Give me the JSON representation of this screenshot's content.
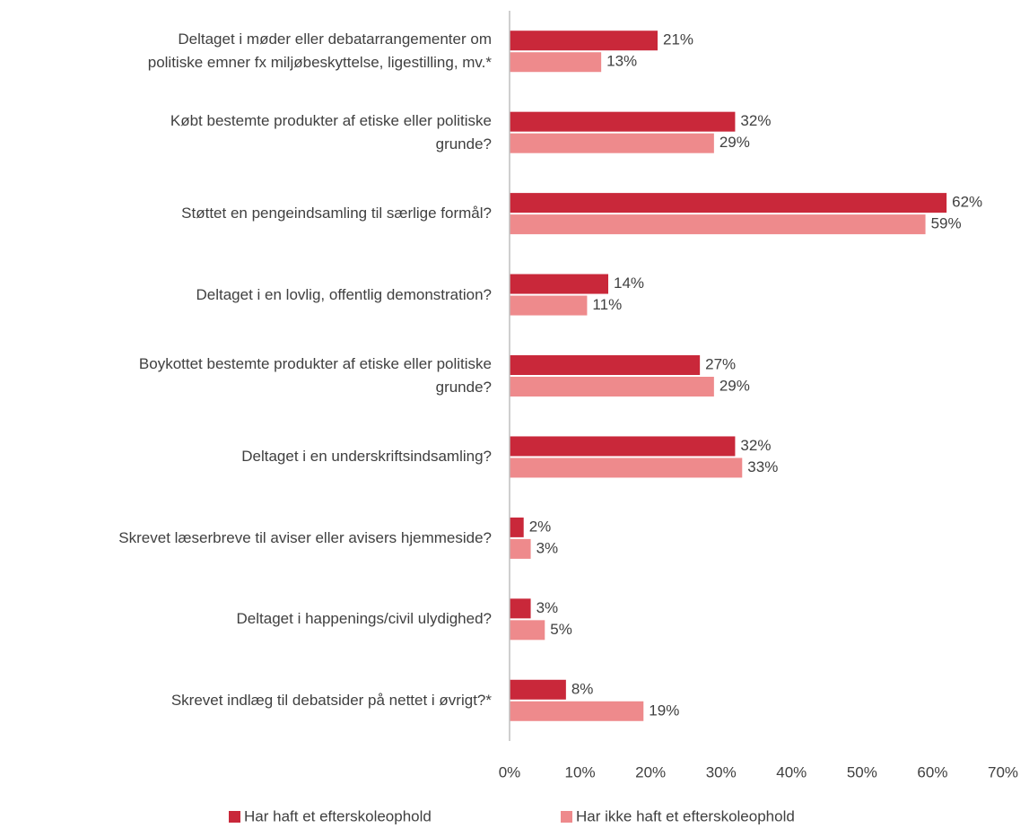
{
  "chart_data": {
    "type": "hbar",
    "categories": [
      "Deltaget i møder eller debatarrangementer om\npolitiske emner fx miljøbeskyttelse, ligestilling, mv.*",
      "Købt bestemte produkter af etiske eller politiske\ngrunde?",
      "Støttet en pengeindsamling til særlige formål?",
      "Deltaget i en lovlig, offentlig demonstration?",
      "Boykottet bestemte produkter af etiske eller politiske\ngrunde?",
      "Deltaget i en underskriftsindsamling?",
      "Skrevet læserbreve til aviser eller avisers hjemmeside?",
      "Deltaget i happenings/civil ulydighed?",
      "Skrevet indlæg til debatsider på nettet i øvrigt?*"
    ],
    "series": [
      {
        "name": "Har haft et efterskoleophold",
        "color": "#c9283a",
        "values": [
          21,
          32,
          62,
          14,
          27,
          32,
          2,
          3,
          8
        ],
        "value_labels": [
          "21%",
          "32%",
          "62%",
          "14%",
          "27%",
          "32%",
          "2%",
          "3%",
          "8%"
        ]
      },
      {
        "name": "Har ikke haft et efterskoleophold",
        "color": "#ee8a8c",
        "values": [
          13,
          29,
          59,
          11,
          29,
          33,
          3,
          5,
          19
        ],
        "value_labels": [
          "13%",
          "29%",
          "59%",
          "11%",
          "29%",
          "33%",
          "3%",
          "5%",
          "19%"
        ]
      }
    ],
    "xlim": [
      0,
      70
    ],
    "xticks": [
      {
        "value": 0,
        "label": "0%"
      },
      {
        "value": 10,
        "label": "10%"
      },
      {
        "value": 20,
        "label": "20%"
      },
      {
        "value": 30,
        "label": "30%"
      },
      {
        "value": 40,
        "label": "40%"
      },
      {
        "value": 50,
        "label": "50%"
      },
      {
        "value": 60,
        "label": "60%"
      },
      {
        "value": 70,
        "label": "70%"
      }
    ],
    "legend": "bottom"
  }
}
